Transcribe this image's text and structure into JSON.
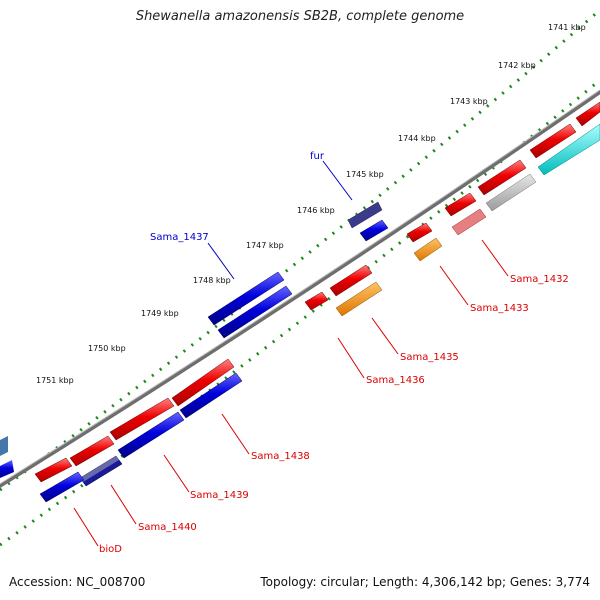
{
  "title": "Shewanella amazonensis SB2B, complete genome",
  "accession_text": "Accession: NC_008700",
  "summary_text": "Topology: circular; Length: 4,306,142 bp; Genes: 3,774",
  "ruler_labels": [
    "1741 kbp",
    "1742 kbp",
    "1743 kbp",
    "1744 kbp",
    "1745 kbp",
    "1746 kbp",
    "1747 kbp",
    "1748 kbp",
    "1749 kbp",
    "1750 kbp",
    "1751 kbp"
  ],
  "gene_labels": {
    "fur": "fur",
    "sama_1437": "Sama_1437",
    "sama_1432": "Sama_1432",
    "sama_1433": "Sama_1433",
    "sama_1435": "Sama_1435",
    "sama_1436": "Sama_1436",
    "sama_1438": "Sama_1438",
    "sama_1439": "Sama_1439",
    "sama_1440": "Sama_1440",
    "biod": "bioD"
  },
  "colors": {
    "forward_strand_gene": "#0000cc",
    "reverse_strand_gene": "#dd0000",
    "highlight_orange": "#ff9900",
    "highlight_cyan": "#00dddd",
    "pseudo_gray": "#bbbbbb",
    "pink": "#e58080",
    "purple": "#44448a",
    "ruler_green": "#1a7a1a",
    "backbone": "#777777"
  }
}
